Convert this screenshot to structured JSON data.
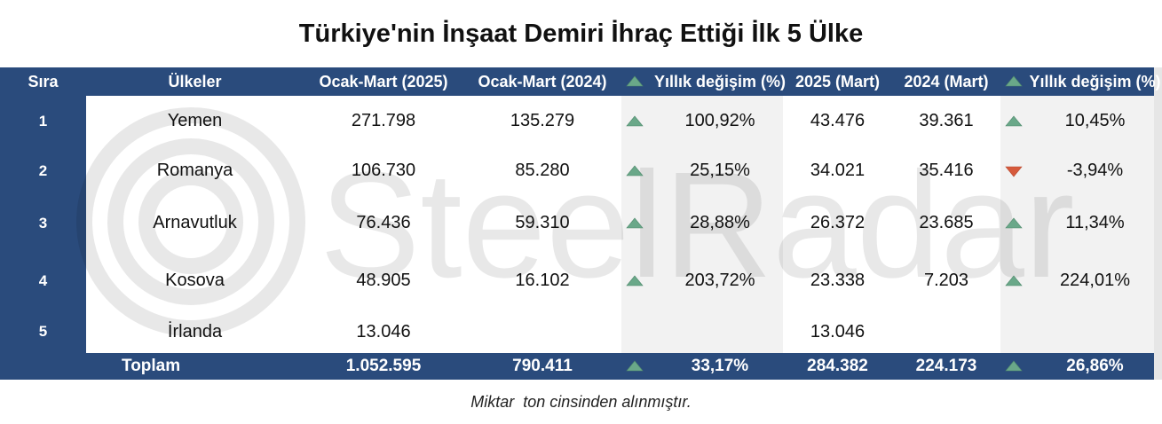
{
  "title": "Türkiye'nin İnşaat Demiri İhraç Ettiği İlk 5 Ülke",
  "table": {
    "header": [
      "Sıra",
      "Ülkeler",
      "Ocak-Mart (2025)",
      "Ocak-Mart (2024)",
      "Yıllık değişim (%)",
      "2025 (Mart)",
      "2024 (Mart)",
      "Yıllık değişim (%)"
    ],
    "rows": [
      [
        "1",
        "Yemen",
        "271.798",
        "135.279",
        "100,92%",
        "43.476",
        "39.361",
        "10,45%"
      ],
      [
        "2",
        "Romanya",
        "106.730",
        "85.280",
        "25,15%",
        "34.021",
        "35.416",
        "-3,94%"
      ],
      [
        "3",
        "Arnavutluk",
        "76.436",
        "59.310",
        "28,88%",
        "26.372",
        "23.685",
        "11,34%"
      ],
      [
        "4",
        "Kosova",
        "48.905",
        "16.102",
        "203,72%",
        "23.338",
        "7.203",
        "224,01%"
      ],
      [
        "5",
        "İrlanda",
        "13.046",
        null,
        null,
        "13.046",
        null,
        null
      ]
    ],
    "total": [
      null,
      "Toplam",
      "1.052.595",
      "790.411",
      "33,17%",
      "284.382",
      "224.173",
      "26,86%"
    ]
  },
  "note": "Miktar  ton cinsinden alınmıştır.",
  "watermark": "SteelRadar"
}
